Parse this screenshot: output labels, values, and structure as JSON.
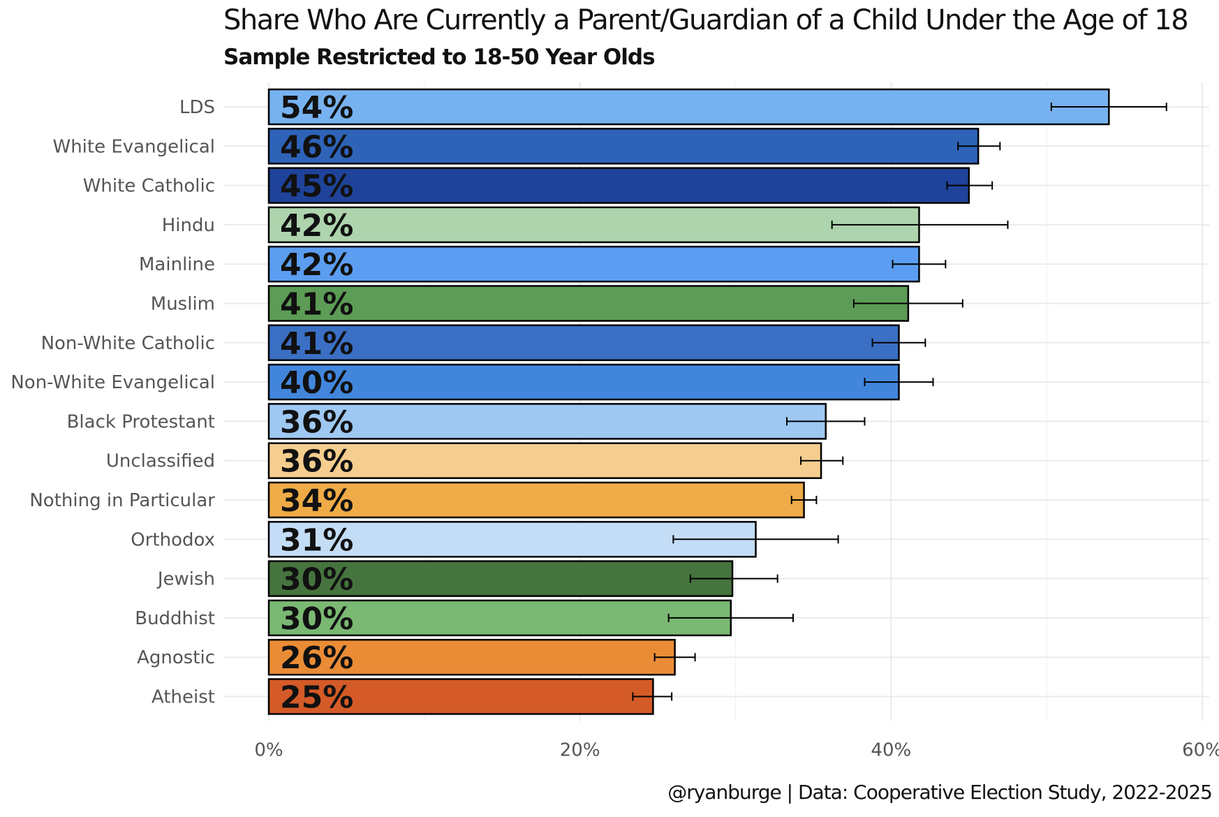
{
  "chart_data": {
    "type": "bar",
    "orientation": "horizontal",
    "title": "Share Who Are Currently a Parent/Guardian of a Child Under the Age of 18",
    "subtitle": "Sample Restricted to 18-50 Year Olds",
    "caption": "@ryanburge | Data: Cooperative Election Study, 2022-2025",
    "xlabel": "",
    "ylabel": "",
    "xlim": [
      0,
      0.6
    ],
    "x_ticks": [
      0,
      0.2,
      0.4,
      0.6
    ],
    "x_tick_labels": [
      "0%",
      "20%",
      "40%",
      "60%"
    ],
    "grid": true,
    "legend": "none",
    "categories": [
      "LDS",
      "White Evangelical",
      "White Catholic",
      "Hindu",
      "Mainline",
      "Muslim",
      "Non-White Catholic",
      "Non-White Evangelical",
      "Black Protestant",
      "Unclassified",
      "Nothing in Particular",
      "Orthodox",
      "Jewish",
      "Buddhist",
      "Agnostic",
      "Atheist"
    ],
    "values": [
      0.54,
      0.456,
      0.45,
      0.418,
      0.418,
      0.411,
      0.405,
      0.405,
      0.358,
      0.355,
      0.344,
      0.313,
      0.298,
      0.297,
      0.261,
      0.247
    ],
    "labels": [
      "54%",
      "46%",
      "45%",
      "42%",
      "42%",
      "41%",
      "41%",
      "40%",
      "36%",
      "36%",
      "34%",
      "31%",
      "30%",
      "30%",
      "26%",
      "25%"
    ],
    "error_low": [
      0.503,
      0.443,
      0.436,
      0.362,
      0.401,
      0.376,
      0.388,
      0.383,
      0.333,
      0.342,
      0.336,
      0.26,
      0.271,
      0.257,
      0.248,
      0.234
    ],
    "error_high": [
      0.577,
      0.47,
      0.465,
      0.475,
      0.435,
      0.446,
      0.422,
      0.427,
      0.383,
      0.369,
      0.352,
      0.366,
      0.327,
      0.337,
      0.274,
      0.259
    ],
    "colors": [
      "#77b2f0",
      "#2e63b8",
      "#1f439a",
      "#aed4ae",
      "#5b9df0",
      "#5c9c56",
      "#3a6fc4",
      "#4286dc",
      "#9ec8f2",
      "#f5cd8e",
      "#efab47",
      "#c4ddf6",
      "#46743e",
      "#7ab873",
      "#ea8c36",
      "#d45b27"
    ]
  }
}
